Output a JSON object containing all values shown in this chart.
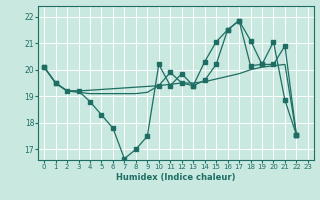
{
  "xlabel": "Humidex (Indice chaleur)",
  "xlim": [
    -0.5,
    23.5
  ],
  "ylim": [
    16.6,
    22.4
  ],
  "xticks": [
    0,
    1,
    2,
    3,
    4,
    5,
    6,
    7,
    8,
    9,
    10,
    11,
    12,
    13,
    14,
    15,
    16,
    17,
    18,
    19,
    20,
    21,
    22,
    23
  ],
  "yticks": [
    17,
    18,
    19,
    20,
    21,
    22
  ],
  "bg_color": "#c8e8e0",
  "grid_color": "#ffffff",
  "line_color": "#1e6e64",
  "line1_x": [
    0,
    1,
    2,
    3,
    4,
    5,
    6,
    7,
    8,
    9,
    10,
    11,
    12,
    13,
    14,
    15,
    16,
    17,
    18,
    19,
    20,
    21,
    22
  ],
  "line1_y": [
    20.1,
    19.5,
    19.2,
    19.15,
    19.1,
    19.1,
    19.1,
    19.1,
    19.1,
    19.15,
    19.4,
    19.45,
    19.5,
    19.5,
    19.55,
    19.65,
    19.75,
    19.85,
    20.0,
    20.1,
    20.15,
    20.2,
    17.55
  ],
  "line2_x": [
    0,
    1,
    2,
    3,
    4,
    5,
    6,
    7,
    8,
    9,
    10,
    11,
    12,
    13,
    14,
    15,
    16,
    17,
    18,
    19,
    20,
    21,
    22
  ],
  "line2_y": [
    20.1,
    19.5,
    19.2,
    19.2,
    18.8,
    18.3,
    17.8,
    16.65,
    17.0,
    17.5,
    20.2,
    19.4,
    19.85,
    19.4,
    20.3,
    21.05,
    21.5,
    21.85,
    21.1,
    20.2,
    21.05,
    18.85,
    17.55
  ],
  "line3_x": [
    0,
    1,
    2,
    3,
    10,
    11,
    12,
    13,
    14,
    15,
    16,
    17,
    18,
    19,
    20,
    21,
    22
  ],
  "line3_y": [
    20.1,
    19.5,
    19.2,
    19.2,
    19.4,
    19.9,
    19.5,
    19.4,
    19.6,
    20.2,
    21.5,
    21.85,
    20.15,
    20.2,
    20.2,
    20.9,
    17.55
  ]
}
